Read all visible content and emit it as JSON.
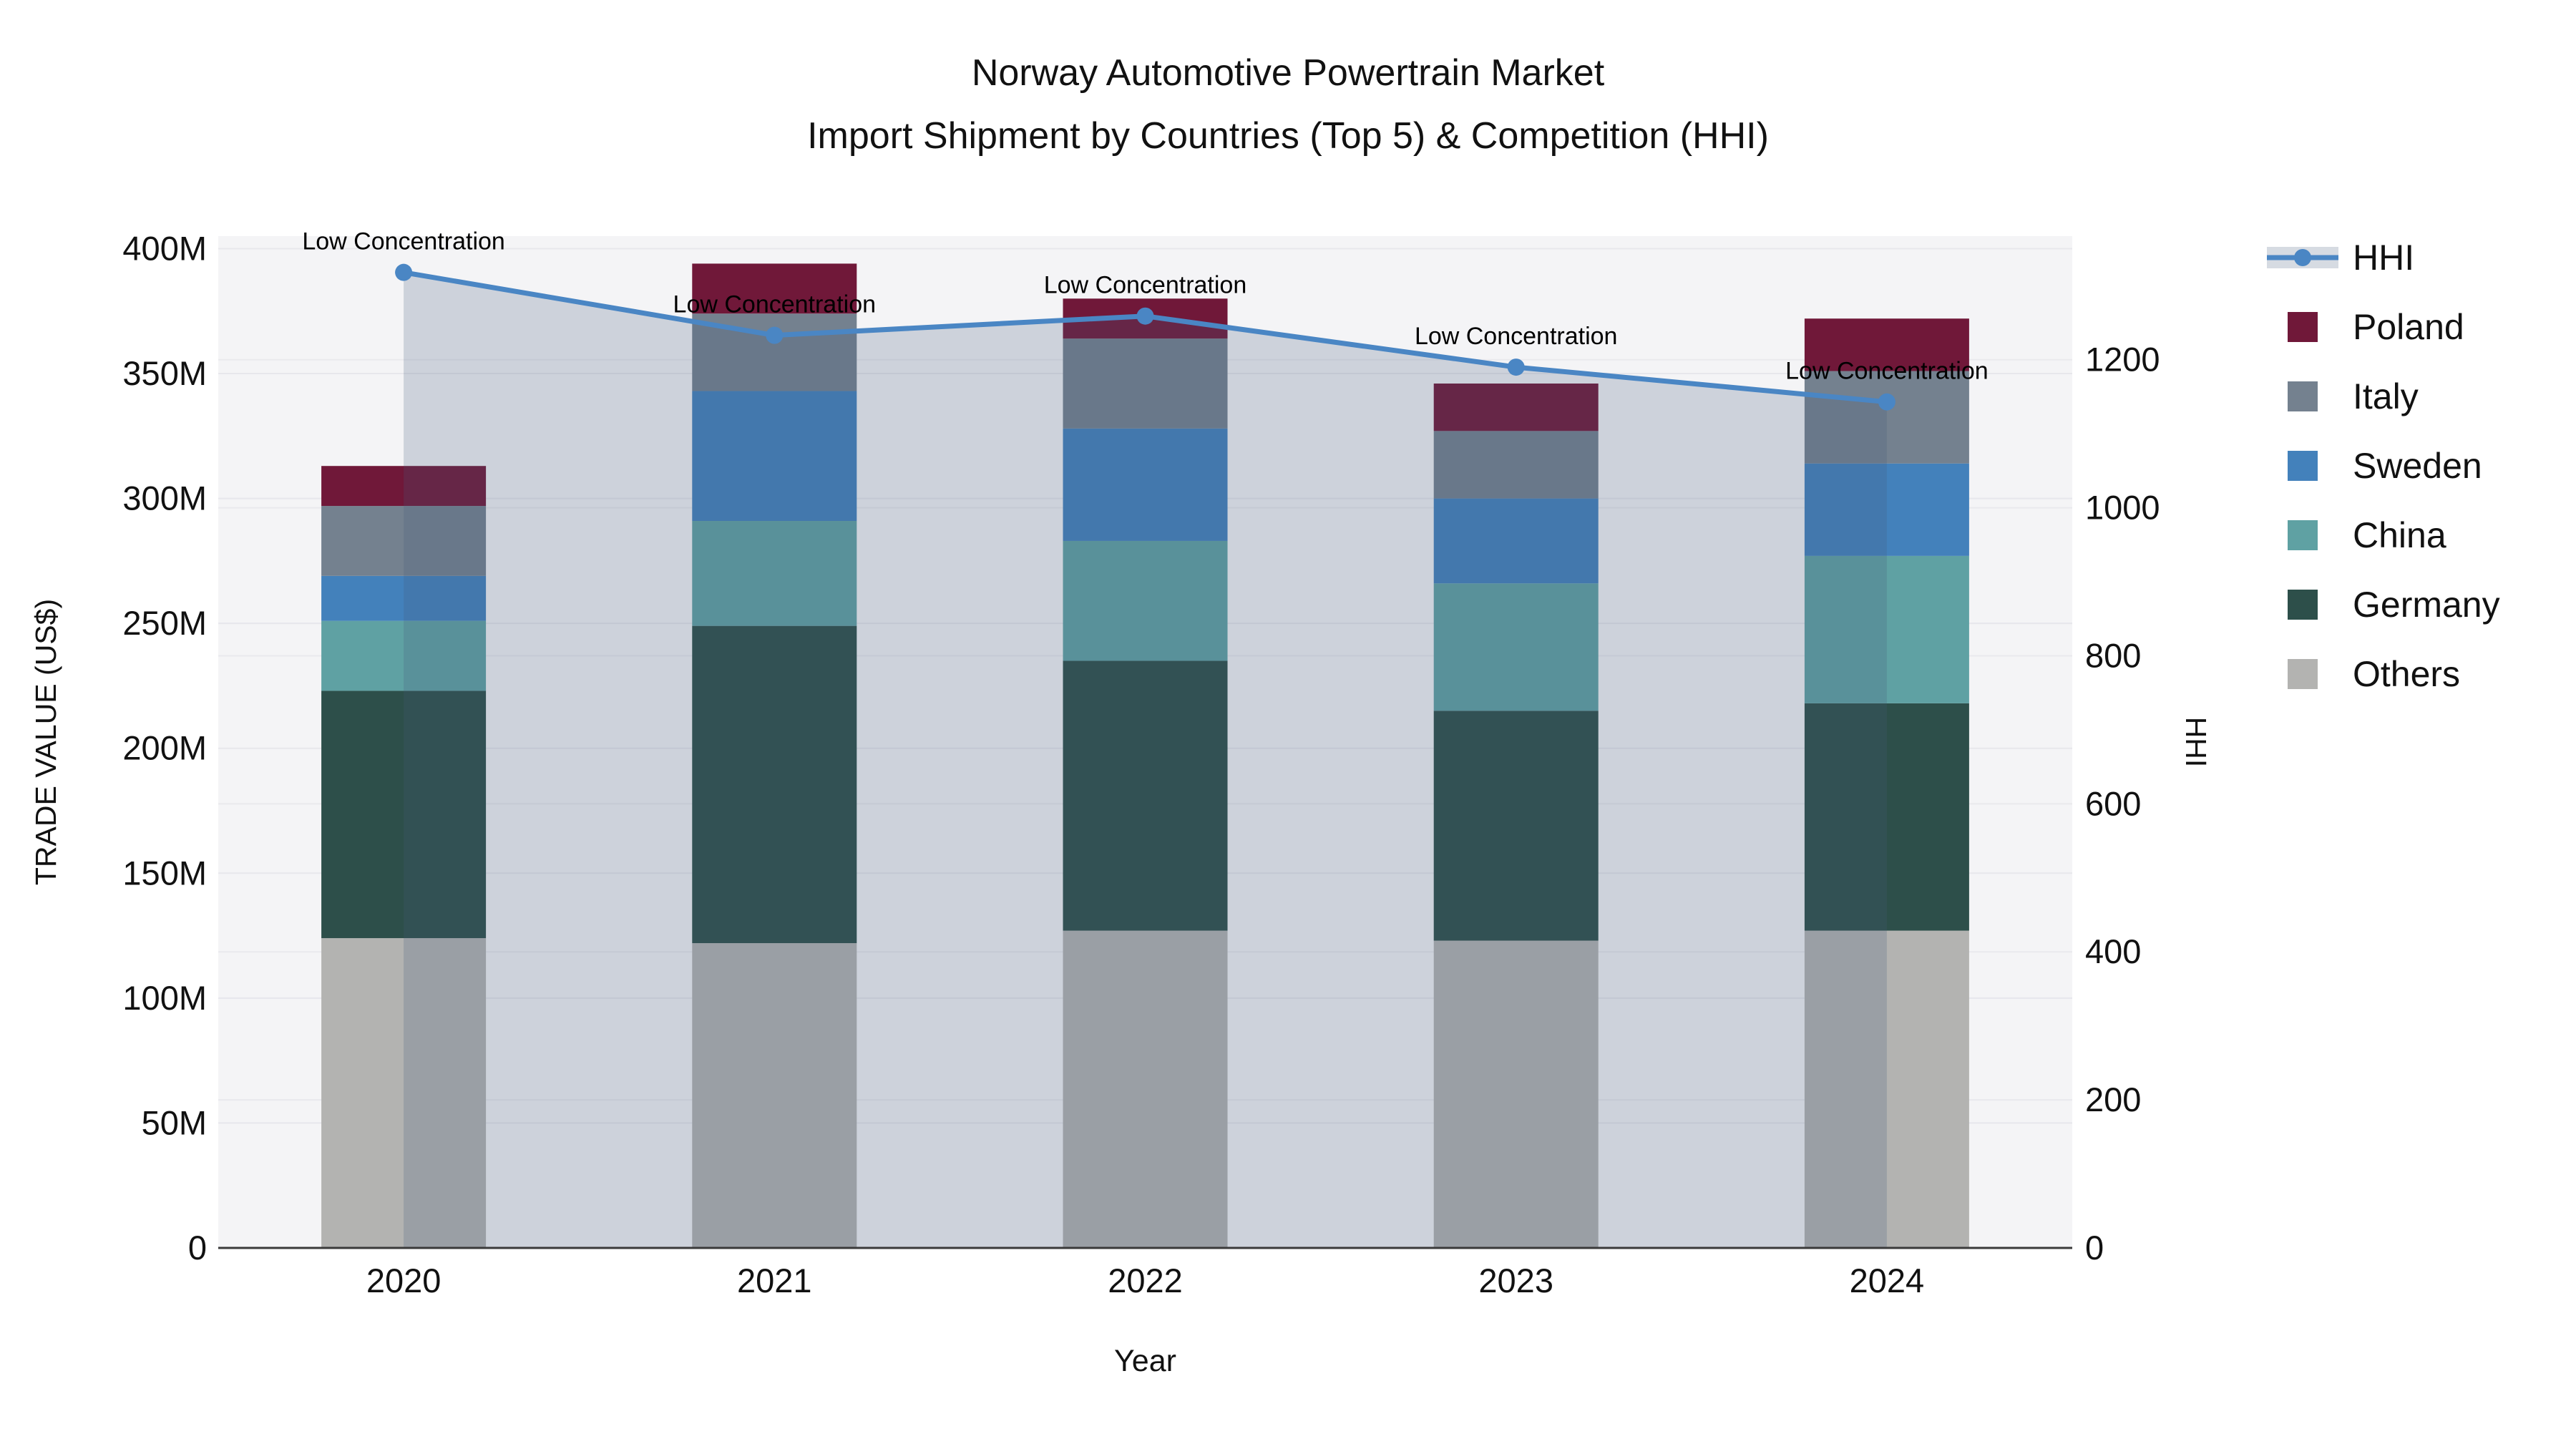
{
  "title": {
    "line1": "Norway Automotive Powertrain Market",
    "line2": "Import Shipment by Countries (Top 5) & Competition (HHI)"
  },
  "axes": {
    "x": {
      "label": "Year",
      "tick_labels": [
        "2020",
        "2021",
        "2022",
        "2023",
        "2024"
      ]
    },
    "y_left": {
      "label": "TRADE VALUE (US$)",
      "tick_labels": [
        "0",
        "50M",
        "100M",
        "150M",
        "200M",
        "250M",
        "300M",
        "350M",
        "400M"
      ],
      "tick_values": [
        0,
        50,
        100,
        150,
        200,
        250,
        300,
        350,
        400
      ],
      "range": [
        0,
        405
      ]
    },
    "y_right": {
      "label": "HHI",
      "tick_labels": [
        "0",
        "200",
        "400",
        "600",
        "800",
        "1000",
        "1200"
      ],
      "tick_values": [
        0,
        200,
        400,
        600,
        800,
        1000,
        1200
      ],
      "range": [
        0,
        1367
      ]
    }
  },
  "legend": {
    "items": [
      {
        "label": "HHI",
        "kind": "line",
        "color": "#4a86c4"
      },
      {
        "label": "Poland",
        "kind": "swatch",
        "color": "#701839"
      },
      {
        "label": "Italy",
        "kind": "swatch",
        "color": "#74818f"
      },
      {
        "label": "Sweden",
        "kind": "swatch",
        "color": "#4381bb"
      },
      {
        "label": "China",
        "kind": "swatch",
        "color": "#5fa1a3"
      },
      {
        "label": "Germany",
        "kind": "swatch",
        "color": "#2d4f4a"
      },
      {
        "label": "Others",
        "kind": "swatch",
        "color": "#b3b3b1"
      }
    ]
  },
  "chart_data": {
    "type": "bar+line",
    "title": "Norway Automotive Powertrain Market — Import Shipment by Countries (Top 5) & Competition (HHI)",
    "categories": [
      "2020",
      "2021",
      "2022",
      "2023",
      "2024"
    ],
    "bar_value_unit": "M US$",
    "stack_order_bottom_to_top": [
      "Others",
      "Germany",
      "China",
      "Sweden",
      "Italy",
      "Poland"
    ],
    "series": [
      {
        "name": "Others",
        "color": "#b3b3b1",
        "values": [
          124,
          122,
          127,
          123,
          127
        ]
      },
      {
        "name": "Germany",
        "color": "#2d4f4a",
        "values": [
          99,
          127,
          108,
          92,
          91
        ]
      },
      {
        "name": "China",
        "color": "#5fa1a3",
        "values": [
          28,
          42,
          48,
          51,
          59
        ]
      },
      {
        "name": "Sweden",
        "color": "#4381bb",
        "values": [
          18,
          52,
          45,
          34,
          37
        ]
      },
      {
        "name": "Italy",
        "color": "#74818f",
        "values": [
          28,
          31,
          36,
          27,
          37
        ]
      },
      {
        "name": "Poland",
        "color": "#701839",
        "values": [
          16,
          20,
          16,
          19,
          21
        ]
      }
    ],
    "bar_totals": [
      313,
      394,
      380,
      346,
      372
    ],
    "line": {
      "name": "HHI",
      "axis": "right",
      "color": "#4a86c4",
      "fill_color": "rgba(70,90,125,0.22)",
      "values": [
        1318,
        1233,
        1259,
        1190,
        1143
      ],
      "annotations": [
        "Low Concentration",
        "Low Concentration",
        "Low Concentration",
        "Low Concentration",
        "Low Concentration"
      ]
    },
    "xlabel": "Year",
    "ylabel_left": "TRADE VALUE (US$)",
    "ylabel_right": "HHI",
    "grid": true,
    "legend_position": "right"
  },
  "colors": {
    "figure_background": "#ffffff",
    "plot_background": "#f4f4f6",
    "gridline": "#e7e7ec",
    "axis_line": "#3a3a3a",
    "text": "#111111",
    "hhi_line": "#4a86c4",
    "hhi_fill": "rgba(70,90,125,0.22)"
  }
}
